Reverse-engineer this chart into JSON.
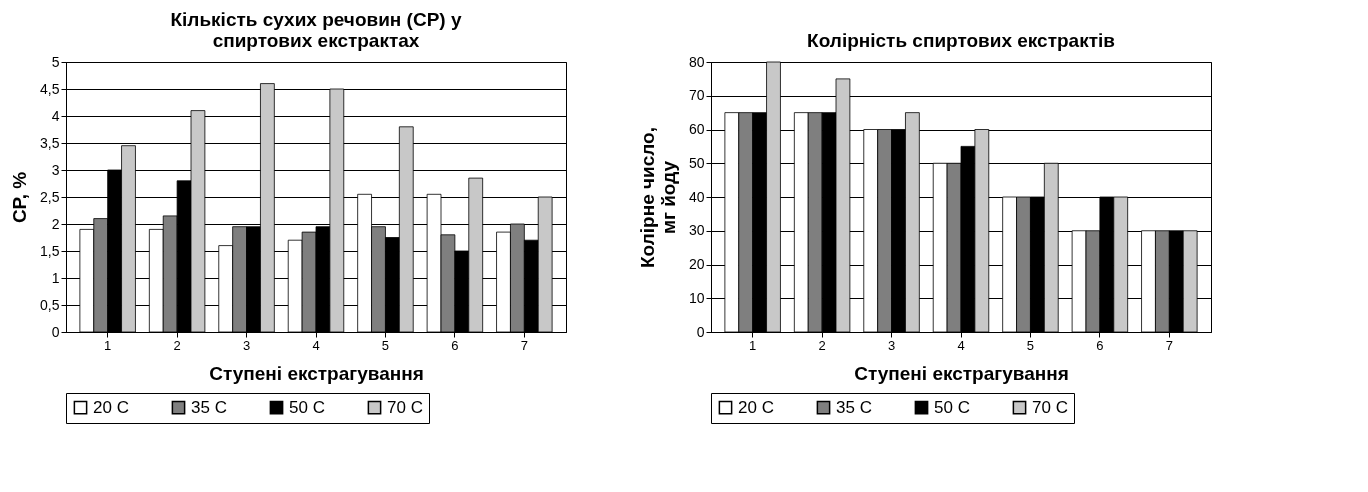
{
  "chart_data": [
    {
      "type": "bar",
      "title": "Кількість сухих речовин (СР) у спиртових екстрактах",
      "xlabel": "Ступені екстрагування",
      "ylabel": "СР, %",
      "categories": [
        "1",
        "2",
        "3",
        "4",
        "5",
        "6",
        "7"
      ],
      "series": [
        {
          "name": "20 С",
          "color": "#ffffff",
          "values": [
            1.9,
            1.9,
            1.6,
            1.7,
            2.55,
            2.55,
            1.85
          ]
        },
        {
          "name": "35 С",
          "color": "#7f7f7f",
          "values": [
            2.1,
            2.15,
            1.95,
            1.85,
            1.95,
            1.8,
            2.0
          ]
        },
        {
          "name": "50 С",
          "color": "#000000",
          "values": [
            3.0,
            2.8,
            1.95,
            1.95,
            1.75,
            1.5,
            1.7
          ]
        },
        {
          "name": "70 С",
          "color": "#c8c8c8",
          "values": [
            3.45,
            4.1,
            4.6,
            4.5,
            3.8,
            2.85,
            2.5
          ]
        }
      ],
      "ylim": [
        0,
        5
      ],
      "yticks": [
        0,
        {
          "value": 0.5,
          "label": "0,5"
        },
        1,
        {
          "value": 1.5,
          "label": "1,5"
        },
        2,
        {
          "value": 2.5,
          "label": "2,5"
        },
        3,
        {
          "value": 3.5,
          "label": "3,5"
        },
        4,
        {
          "value": 4.5,
          "label": "4,5"
        },
        5
      ],
      "grid": "y",
      "legend": "bottom"
    },
    {
      "type": "bar",
      "title": "Колірність спиртових екстрактів",
      "xlabel": "Ступені екстрагування",
      "ylabel": "Колірне число, мг йоду",
      "categories": [
        "1",
        "2",
        "3",
        "4",
        "5",
        "6",
        "7"
      ],
      "series": [
        {
          "name": "20 С",
          "color": "#ffffff",
          "values": [
            65,
            65,
            60,
            50,
            40,
            30,
            30
          ]
        },
        {
          "name": "35 С",
          "color": "#7f7f7f",
          "values": [
            65,
            65,
            60,
            50,
            40,
            30,
            30
          ]
        },
        {
          "name": "50 С",
          "color": "#000000",
          "values": [
            65,
            65,
            60,
            55,
            40,
            40,
            30
          ]
        },
        {
          "name": "70 С",
          "color": "#c8c8c8",
          "values": [
            80,
            75,
            65,
            60,
            50,
            40,
            30
          ]
        }
      ],
      "ylim": [
        0,
        80
      ],
      "yticks": [
        0,
        10,
        20,
        30,
        40,
        50,
        60,
        70,
        80
      ],
      "grid": "y",
      "legend": "bottom"
    }
  ]
}
